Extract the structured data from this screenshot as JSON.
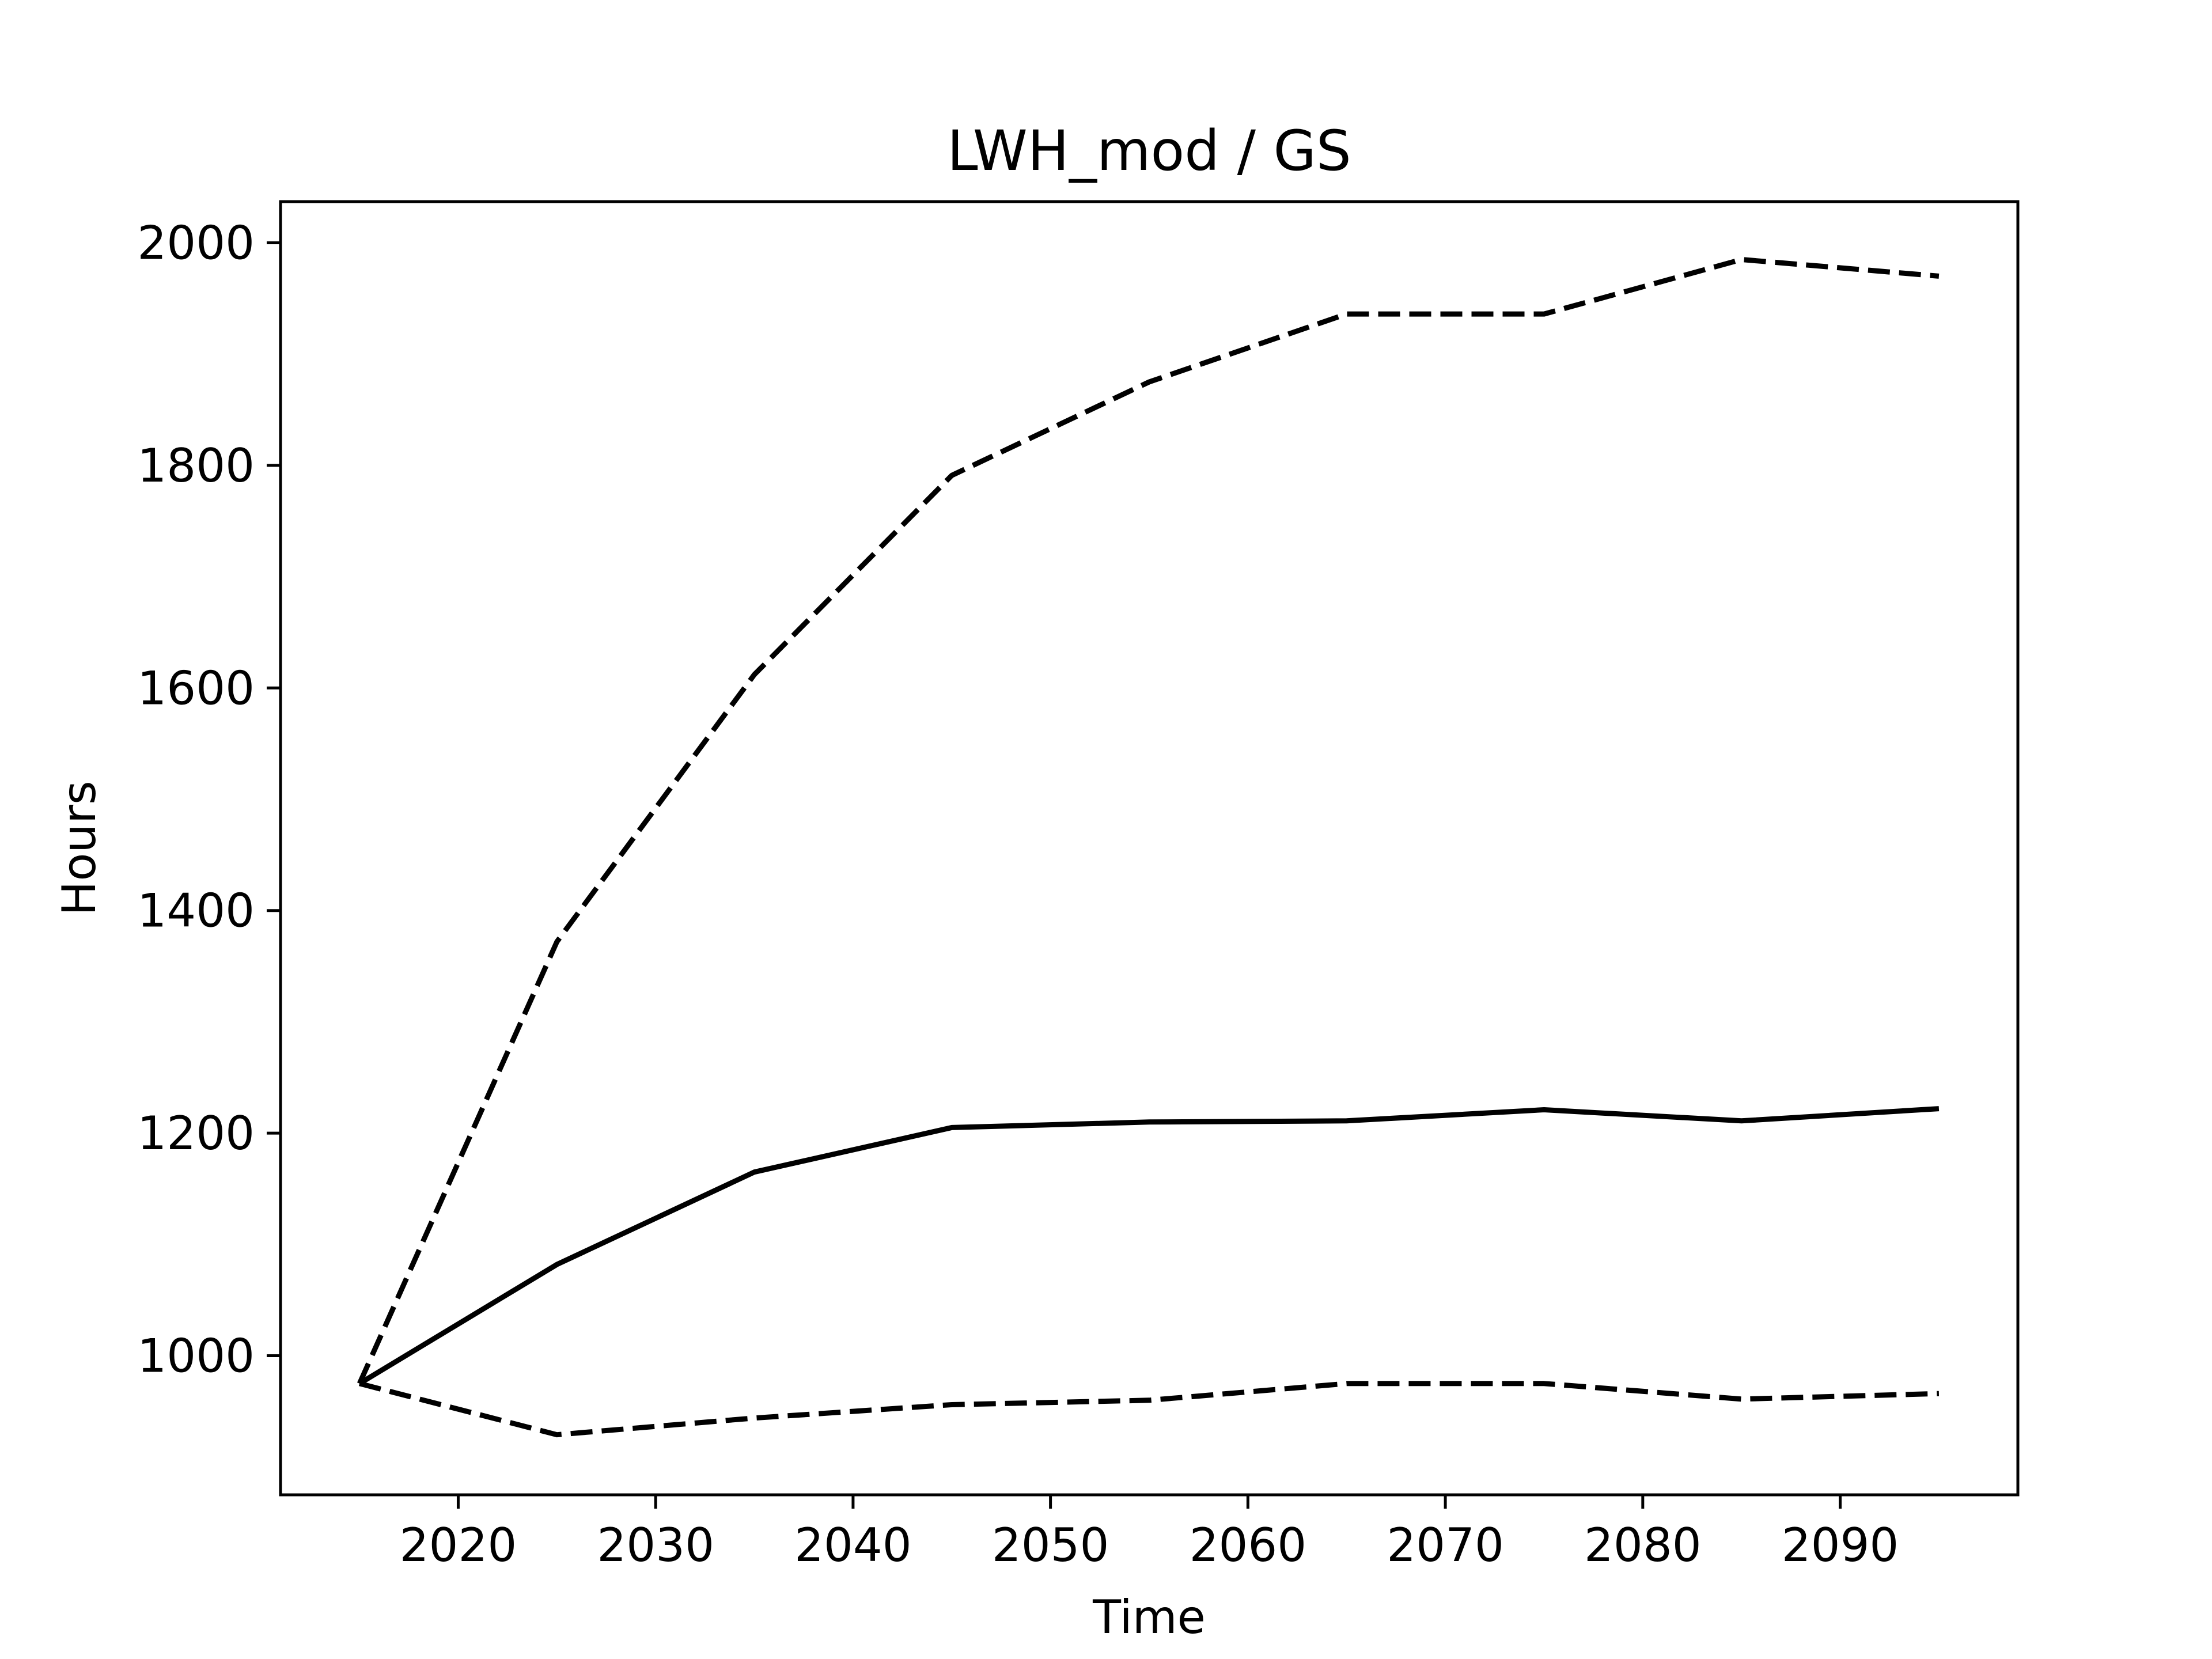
{
  "chart_data": {
    "type": "line",
    "title": "LWH_mod / GS",
    "xlabel": "Time",
    "ylabel": "Hours",
    "xlim": [
      2011,
      2099
    ],
    "ylim": [
      875,
      2037
    ],
    "xticks": [
      2020,
      2030,
      2040,
      2050,
      2060,
      2070,
      2080,
      2090
    ],
    "yticks": [
      1000,
      1200,
      1400,
      1600,
      1800,
      2000
    ],
    "x": [
      2015,
      2025,
      2035,
      2045,
      2055,
      2065,
      2075,
      2085,
      2095
    ],
    "grid": false,
    "legend": "none",
    "series": [
      {
        "style": "solid",
        "color": "#000000",
        "values": [
          975,
          1082,
          1165,
          1205,
          1210,
          1211,
          1221,
          1211,
          1222
        ]
      },
      {
        "style": "dashed",
        "color": "#000000",
        "values": [
          975,
          1372,
          1612,
          1791,
          1875,
          1936,
          1936,
          1985,
          1970
        ]
      },
      {
        "style": "dashed",
        "color": "#000000",
        "values": [
          975,
          929,
          944,
          956,
          960,
          975,
          975,
          961,
          966
        ]
      }
    ]
  }
}
